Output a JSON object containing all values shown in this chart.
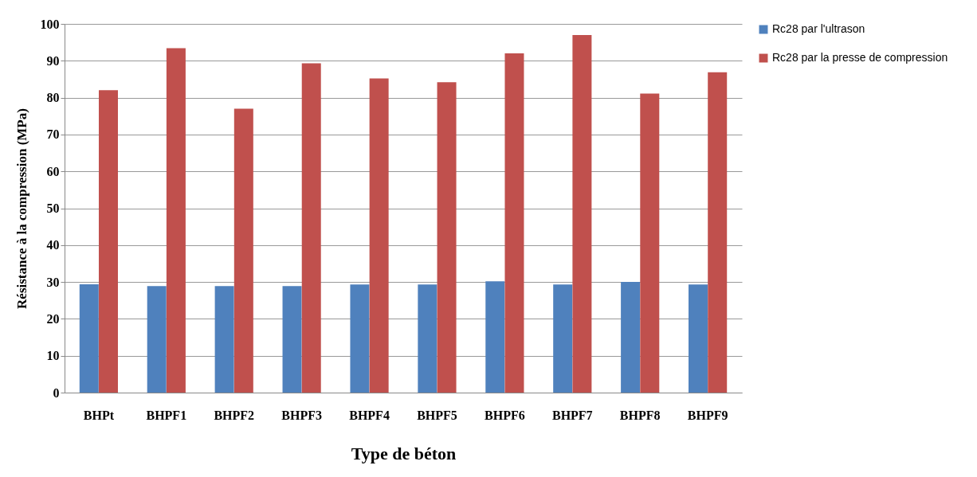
{
  "chart_data": {
    "type": "bar",
    "xlabel": "Type de béton",
    "ylabel": "Résistance à la compression (MPa)",
    "categories": [
      "BHPt",
      "BHPF1",
      "BHPF2",
      "BHPF3",
      "BHPF4",
      "BHPF5",
      "BHPF6",
      "BHPF7",
      "BHPF8",
      "BHPF9"
    ],
    "series": [
      {
        "name": "Rc28 par l'ultrason",
        "color": "#4f81bd",
        "values": [
          29.4,
          28.9,
          28.9,
          28.9,
          29.3,
          29.3,
          30.2,
          29.3,
          30.0,
          29.3
        ]
      },
      {
        "name": "Rc28 par la presse de compression",
        "color": "#c0504d",
        "values": [
          82.0,
          93.4,
          77.0,
          89.3,
          85.2,
          84.2,
          92.0,
          97.0,
          81.1,
          86.9
        ]
      }
    ],
    "ylim": [
      0,
      100
    ],
    "yticks": [
      0,
      10,
      20,
      30,
      40,
      50,
      60,
      70,
      80,
      90,
      100
    ],
    "grid": "y",
    "legend": "right"
  }
}
